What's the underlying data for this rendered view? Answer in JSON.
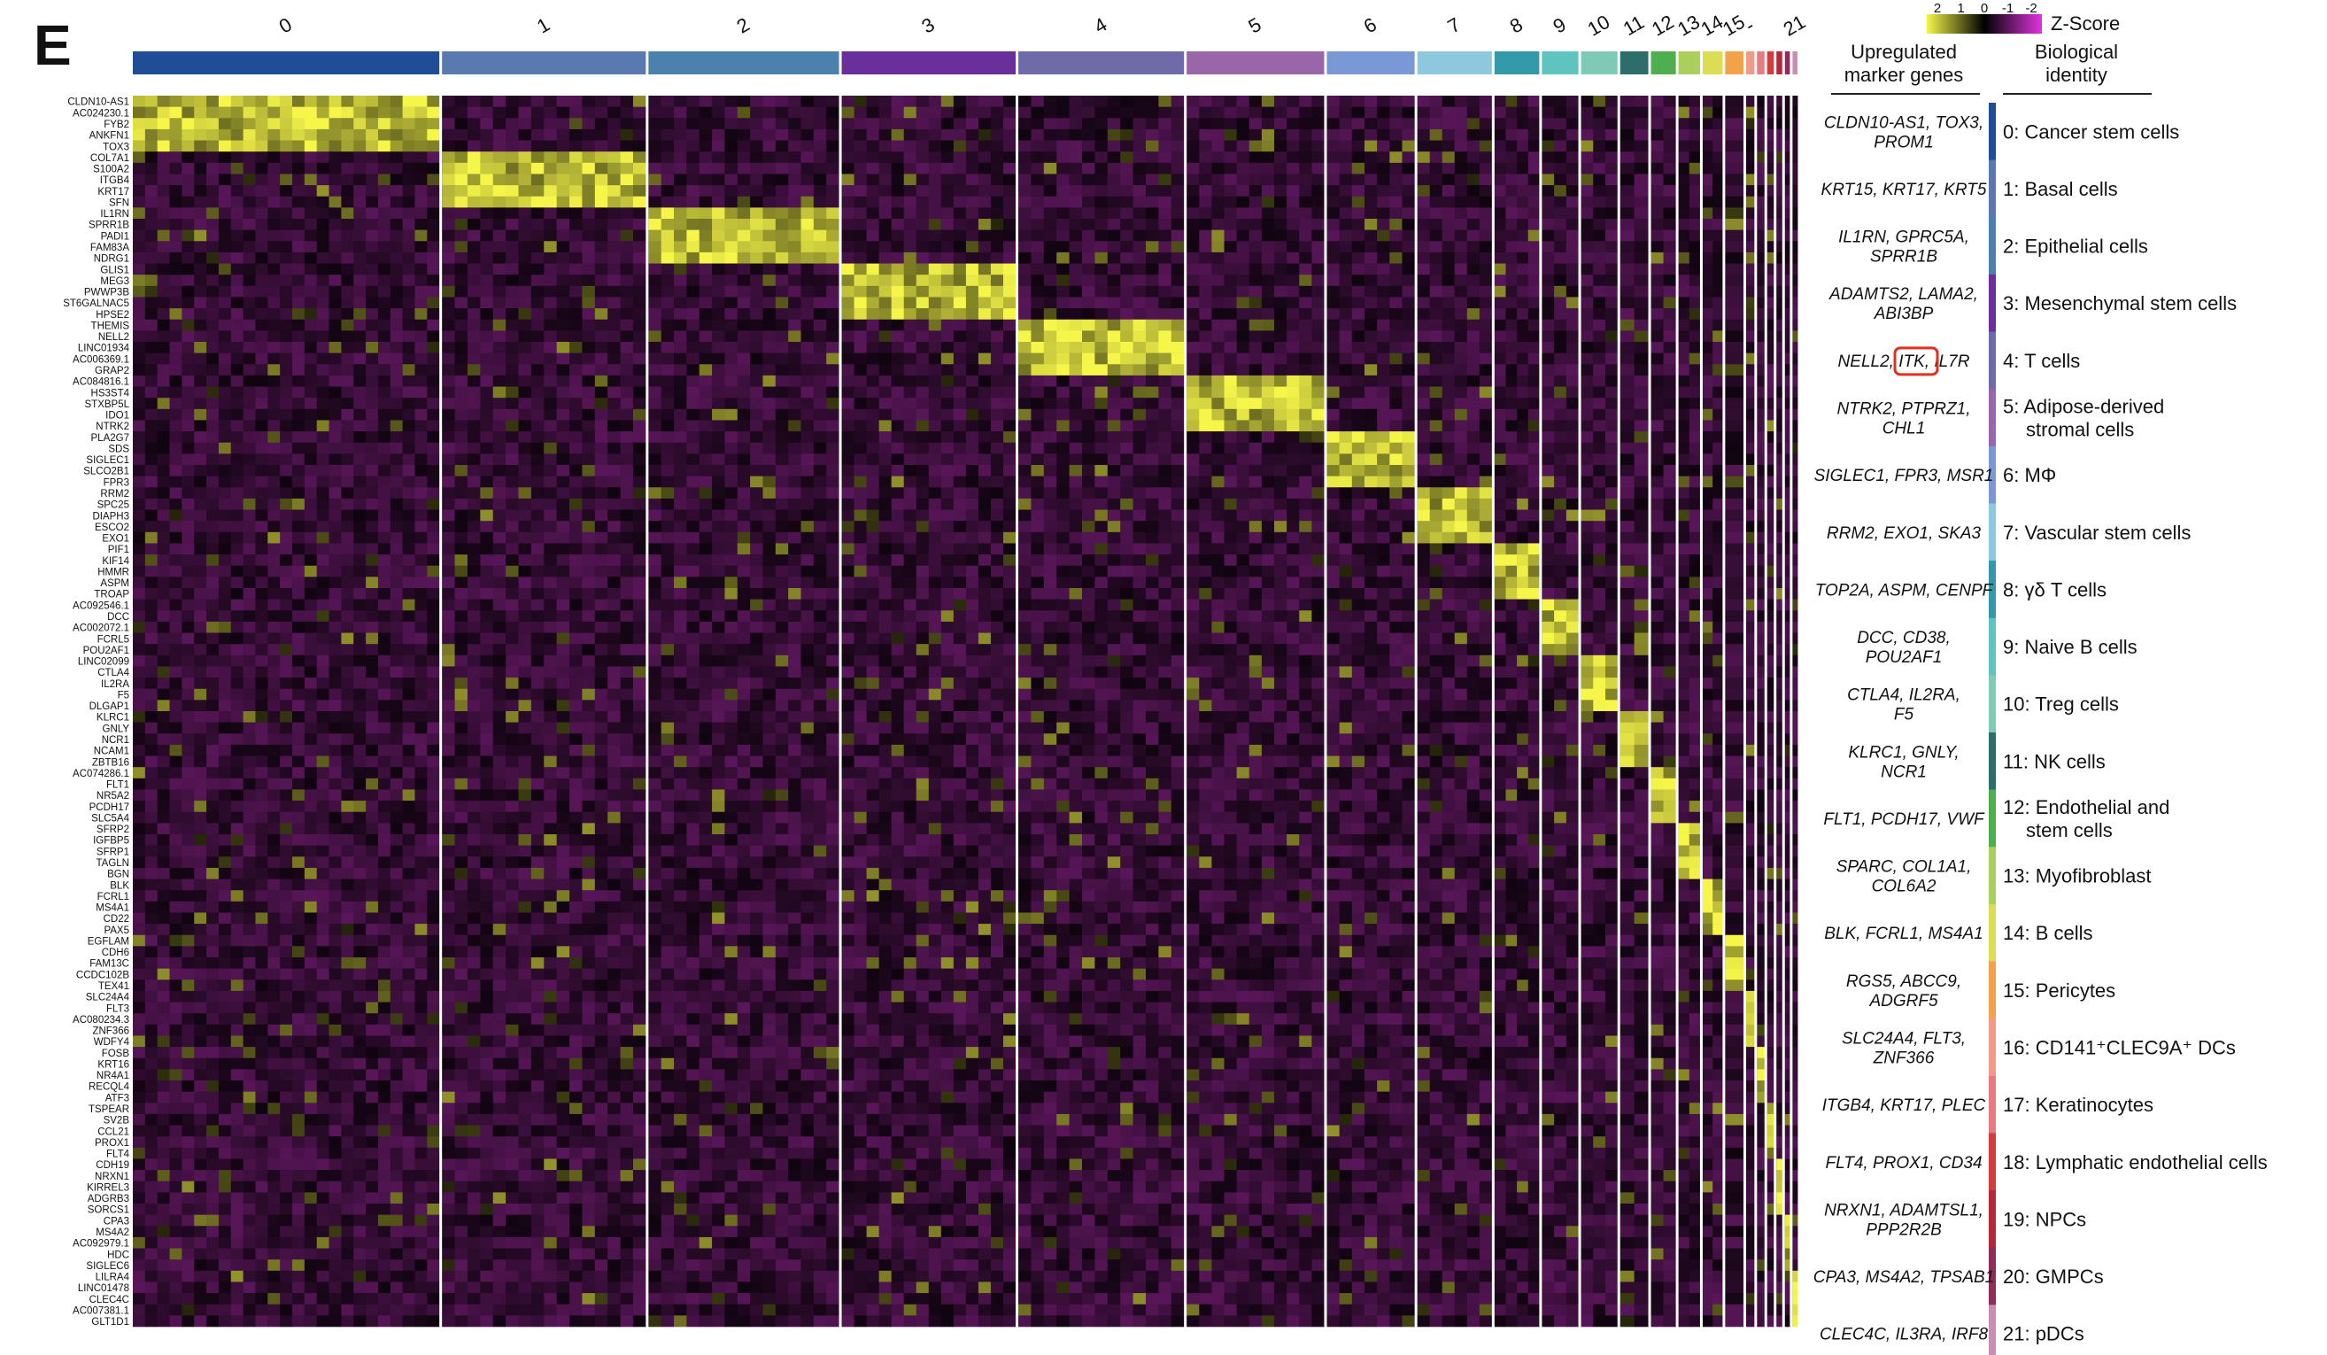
{
  "panel_label": "E",
  "chart_data": {
    "type": "heatmap",
    "legend": {
      "title": "Z-Score",
      "ticks": [
        "2",
        "1",
        "0",
        "-1",
        "-2"
      ],
      "colors": [
        "#f5f54a",
        "#000000",
        "#e033e0"
      ]
    },
    "clusters": [
      {
        "id": "0",
        "color": "#1f4e96",
        "weight": 18.5
      },
      {
        "id": "1",
        "color": "#5a79b0",
        "weight": 12.3
      },
      {
        "id": "2",
        "color": "#4c81ad",
        "weight": 11.5
      },
      {
        "id": "3",
        "color": "#6a2f9a",
        "weight": 10.5
      },
      {
        "id": "4",
        "color": "#6f6ba8",
        "weight": 10.0
      },
      {
        "id": "5",
        "color": "#9966aa",
        "weight": 8.3
      },
      {
        "id": "6",
        "color": "#7a98d6",
        "weight": 5.3
      },
      {
        "id": "7",
        "color": "#8ec8de",
        "weight": 4.5
      },
      {
        "id": "8",
        "color": "#3398a8",
        "weight": 2.7
      },
      {
        "id": "9",
        "color": "#5fc3c0",
        "weight": 2.2
      },
      {
        "id": "10",
        "color": "#80c9b4",
        "weight": 2.2
      },
      {
        "id": "11",
        "color": "#2d6e6a",
        "weight": 1.7
      },
      {
        "id": "12",
        "color": "#4fae4f",
        "weight": 1.5
      },
      {
        "id": "13",
        "color": "#aacf5c",
        "weight": 1.3
      },
      {
        "id": "14",
        "color": "#dcdc55",
        "weight": 1.2
      },
      {
        "id": "15",
        "color": "#f2a24a",
        "weight": 1.1
      },
      {
        "id": "16",
        "color": "#f09a8a",
        "weight": 0.5
      },
      {
        "id": "17",
        "color": "#e67c80",
        "weight": 0.45
      },
      {
        "id": "18",
        "color": "#d43c3c",
        "weight": 0.4
      },
      {
        "id": "19",
        "color": "#b22a3a",
        "weight": 0.35
      },
      {
        "id": "20",
        "color": "#8e2d5a",
        "weight": 0.3
      },
      {
        "id": "21",
        "color": "#c98fb0",
        "weight": 0.3
      }
    ],
    "top_labels": [
      "0",
      "1",
      "2",
      "3",
      "4",
      "5",
      "6",
      "7",
      "8",
      "9",
      "10",
      "11",
      "12",
      "13",
      "14",
      "15",
      "-",
      "21"
    ],
    "top_label_positions": [
      "0",
      "1",
      "2",
      "3",
      "4",
      "5",
      "6",
      "7",
      "8",
      "9",
      "10",
      "11",
      "12",
      "13",
      "14",
      "15",
      "16",
      "21"
    ],
    "genes": [
      "CLDN10-AS1",
      "AC024230.1",
      "FYB2",
      "ANKFN1",
      "TOX3",
      "COL7A1",
      "S100A2",
      "ITGB4",
      "KRT17",
      "SFN",
      "IL1RN",
      "SPRR1B",
      "PADI1",
      "FAM83A",
      "NDRG1",
      "GLIS1",
      "MEG3",
      "PWWP3B",
      "ST6GALNAC5",
      "HPSE2",
      "THEMIS",
      "NELL2",
      "LINC01934",
      "AC006369.1",
      "GRAP2",
      "AC084816.1",
      "HS3ST4",
      "STXBP5L",
      "IDO1",
      "NTRK2",
      "PLA2G7",
      "SDS",
      "SIGLEC1",
      "SLCO2B1",
      "FPR3",
      "RRM2",
      "SPC25",
      "DIAPH3",
      "ESCO2",
      "EXO1",
      "PIF1",
      "KIF14",
      "HMMR",
      "ASPM",
      "TROAP",
      "AC092546.1",
      "DCC",
      "AC002072.1",
      "FCRL5",
      "POU2AF1",
      "LINC02099",
      "CTLA4",
      "IL2RA",
      "F5",
      "DLGAP1",
      "KLRC1",
      "GNLY",
      "NCR1",
      "NCAM1",
      "ZBTB16",
      "AC074286.1",
      "FLT1",
      "NR5A2",
      "PCDH17",
      "SLC5A4",
      "SFRP2",
      "IGFBP5",
      "SFRP1",
      "TAGLN",
      "BGN",
      "BLK",
      "FCRL1",
      "MS4A1",
      "CD22",
      "PAX5",
      "EGFLAM",
      "CDH6",
      "FAM13C",
      "CCDC102B",
      "TEX41",
      "SLC24A4",
      "FLT3",
      "AC080234.3",
      "ZNF366",
      "WDFY4",
      "FOSB",
      "KRT16",
      "NR4A1",
      "RECQL4",
      "ATF3",
      "TSPEAR",
      "SV2B",
      "CCL21",
      "PROX1",
      "FLT4",
      "CDH19",
      "NRXN1",
      "KIRREL3",
      "ADGRB3",
      "SORCS1",
      "CPA3",
      "MS4A2",
      "AC092979.1",
      "HDC",
      "SIGLEC6",
      "LILRA4",
      "LINC01478",
      "CLEC4C",
      "AC007381.1",
      "GLT1D1"
    ],
    "gene_groups": [
      {
        "cluster": "0",
        "rows": 5
      },
      {
        "cluster": "1",
        "rows": 5
      },
      {
        "cluster": "2",
        "rows": 5
      },
      {
        "cluster": "3",
        "rows": 5
      },
      {
        "cluster": "4",
        "rows": 5
      },
      {
        "cluster": "5",
        "rows": 5
      },
      {
        "cluster": "6",
        "rows": 5
      },
      {
        "cluster": "7",
        "rows": 5
      },
      {
        "cluster": "8",
        "rows": 5
      },
      {
        "cluster": "9",
        "rows": 5
      },
      {
        "cluster": "10",
        "rows": 5
      },
      {
        "cluster": "11",
        "rows": 5
      },
      {
        "cluster": "12",
        "rows": 5
      },
      {
        "cluster": "13",
        "rows": 5
      },
      {
        "cluster": "14",
        "rows": 5
      },
      {
        "cluster": "15",
        "rows": 5
      },
      {
        "cluster": "16",
        "rows": 5
      },
      {
        "cluster": "17",
        "rows": 5
      },
      {
        "cluster": "18",
        "rows": 5
      },
      {
        "cluster": "19",
        "rows": 5
      },
      {
        "cluster": "20",
        "rows": 5
      },
      {
        "cluster": "21",
        "rows": 5
      }
    ]
  },
  "table": {
    "header_markers": [
      "Upregulated",
      "marker genes"
    ],
    "header_identity": [
      "Biological",
      "identity"
    ],
    "rows": [
      {
        "markers": [
          "CLDN10-AS1, TOX3,",
          "PROM1"
        ],
        "identity": [
          "0: Cancer stem cells"
        ],
        "color": "#1f4e96"
      },
      {
        "markers": [
          "KRT15, KRT17, KRT5"
        ],
        "identity": [
          "1: Basal cells"
        ],
        "color": "#5a79b0"
      },
      {
        "markers": [
          "IL1RN, GPRC5A,",
          "SPRR1B"
        ],
        "identity": [
          "2: Epithelial cells"
        ],
        "color": "#4c81ad"
      },
      {
        "markers": [
          "ADAMTS2, LAMA2,",
          "ABI3BP"
        ],
        "identity": [
          "3: Mesenchymal stem cells"
        ],
        "color": "#6a2f9a"
      },
      {
        "markers": [
          "NELL2, ITK, IL7R"
        ],
        "identity": [
          "4: T cells"
        ],
        "color": "#6f6ba8",
        "highlight": "ITK"
      },
      {
        "markers": [
          "NTRK2, PTPRZ1,",
          "CHL1"
        ],
        "identity": [
          "5: Adipose-derived",
          "stromal cells"
        ],
        "color": "#9966aa"
      },
      {
        "markers": [
          "SIGLEC1, FPR3, MSR1"
        ],
        "identity": [
          "6: MΦ"
        ],
        "color": "#7a98d6"
      },
      {
        "markers": [
          "RRM2, EXO1, SKA3"
        ],
        "identity": [
          "7: Vascular stem cells"
        ],
        "color": "#8ec8de"
      },
      {
        "markers": [
          "TOP2A, ASPM, CENPF"
        ],
        "identity": [
          "8: γδ T cells"
        ],
        "color": "#3398a8"
      },
      {
        "markers": [
          "DCC, CD38,",
          "POU2AF1"
        ],
        "identity": [
          "9: Naive B cells"
        ],
        "color": "#5fc3c0"
      },
      {
        "markers": [
          "CTLA4, IL2RA,",
          "F5"
        ],
        "identity": [
          "10: Treg cells"
        ],
        "color": "#80c9b4"
      },
      {
        "markers": [
          "KLRC1, GNLY,",
          "NCR1"
        ],
        "identity": [
          "11: NK cells"
        ],
        "color": "#2d6e6a"
      },
      {
        "markers": [
          "FLT1, PCDH17, VWF"
        ],
        "identity": [
          "12: Endothelial and",
          "stem cells"
        ],
        "color": "#4fae4f"
      },
      {
        "markers": [
          "SPARC, COL1A1,",
          "COL6A2"
        ],
        "identity": [
          "13: Myofibroblast"
        ],
        "color": "#aacf5c"
      },
      {
        "markers": [
          "BLK, FCRL1, MS4A1"
        ],
        "identity": [
          "14: B cells"
        ],
        "color": "#dcdc55"
      },
      {
        "markers": [
          "RGS5, ABCC9,",
          "ADGRF5"
        ],
        "identity": [
          "15: Pericytes"
        ],
        "color": "#f2a24a"
      },
      {
        "markers": [
          "SLC24A4, FLT3,",
          "ZNF366"
        ],
        "identity": [
          "16: CD141⁺CLEC9A⁺ DCs"
        ],
        "color": "#f09a8a"
      },
      {
        "markers": [
          "ITGB4, KRT17, PLEC"
        ],
        "identity": [
          "17: Keratinocytes"
        ],
        "color": "#e67c80"
      },
      {
        "markers": [
          "FLT4, PROX1, CD34"
        ],
        "identity": [
          "18: Lymphatic endothelial cells"
        ],
        "color": "#d43c3c"
      },
      {
        "markers": [
          "NRXN1, ADAMTSL1,",
          "PPP2R2B"
        ],
        "identity": [
          "19: NPCs"
        ],
        "color": "#b22a3a"
      },
      {
        "markers": [
          "CPA3, MS4A2, TPSAB1"
        ],
        "identity": [
          "20: GMPCs"
        ],
        "color": "#8e2d5a"
      },
      {
        "markers": [
          "CLEC4C, IL3RA, IRF8"
        ],
        "identity": [
          "21: pDCs"
        ],
        "color": "#c98fb0"
      }
    ]
  }
}
